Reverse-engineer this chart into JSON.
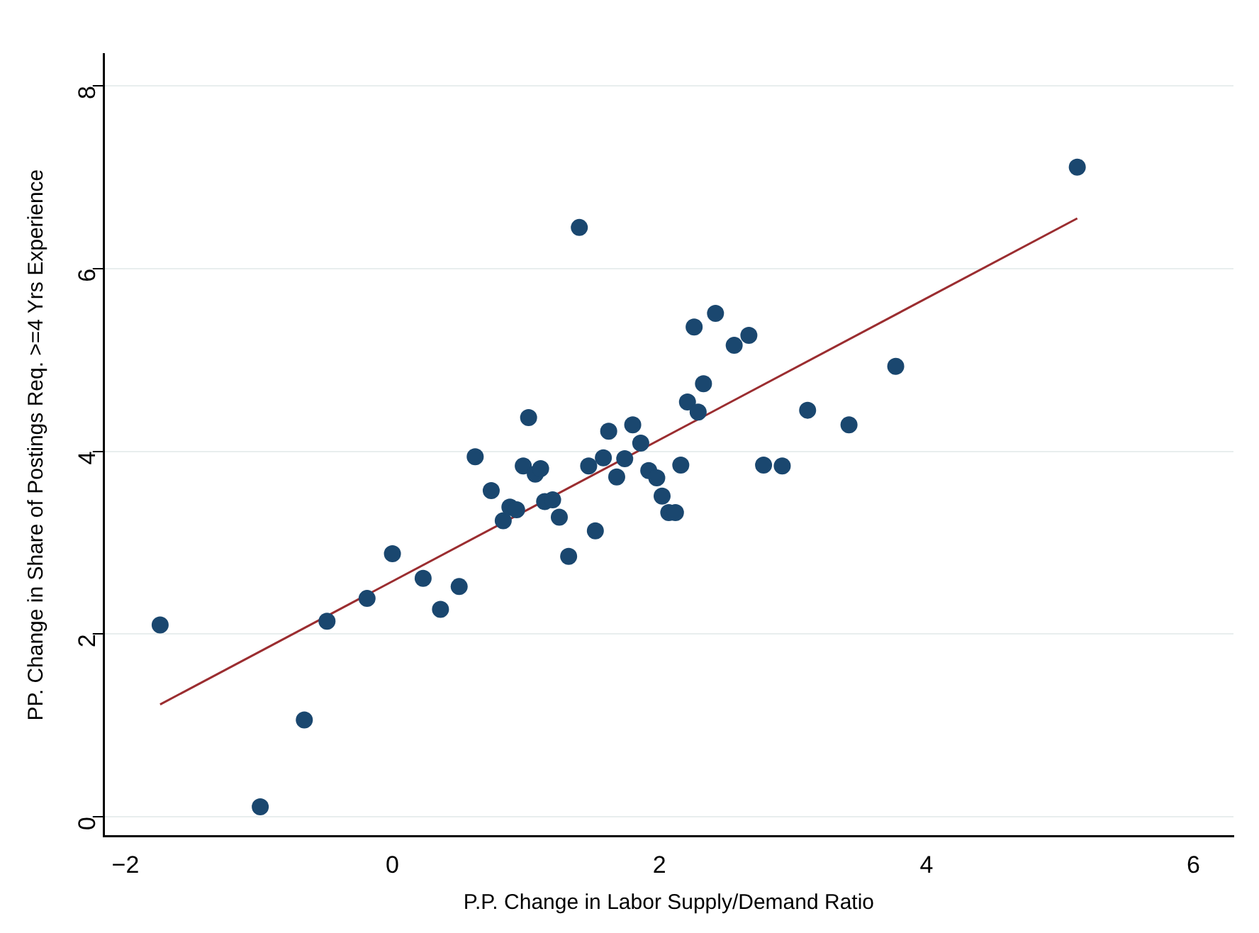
{
  "chart_data": {
    "type": "scatter",
    "xlabel": "P.P. Change in Labor Supply/Demand Ratio",
    "ylabel": "PP. Change in Share of Postings Req. >=4 Yrs Experience",
    "xlim": [
      -2.16,
      6.3
    ],
    "ylim": [
      -0.21,
      8.35
    ],
    "xticks": [
      -2,
      0,
      2,
      4,
      6
    ],
    "yticks": [
      0,
      2,
      4,
      6,
      8
    ],
    "grid": "y",
    "legend": false,
    "marker": "circle",
    "series": [
      {
        "color": "#1a476f",
        "x": [
          -1.74,
          -0.99,
          -0.66,
          -0.49,
          -0.19,
          0.0,
          0.23,
          0.36,
          0.5,
          0.62,
          0.74,
          0.83,
          0.88,
          0.93,
          0.98,
          1.02,
          1.07,
          1.11,
          1.14,
          1.2,
          1.25,
          1.32,
          1.4,
          1.47,
          1.52,
          1.58,
          1.62,
          1.68,
          1.74,
          1.8,
          1.86,
          1.92,
          1.98,
          2.02,
          2.07,
          2.12,
          2.16,
          2.21,
          2.26,
          2.29,
          2.33,
          2.42,
          2.56,
          2.67,
          2.78,
          2.92,
          3.11,
          3.42,
          3.77,
          5.13
        ],
        "values": [
          2.1,
          0.11,
          1.06,
          2.14,
          2.39,
          2.88,
          2.61,
          2.27,
          2.52,
          3.94,
          3.57,
          3.24,
          3.39,
          3.36,
          3.84,
          4.37,
          3.75,
          3.81,
          3.45,
          3.47,
          3.28,
          2.85,
          6.45,
          3.84,
          3.13,
          3.93,
          4.22,
          3.72,
          3.92,
          4.29,
          4.09,
          3.79,
          3.71,
          3.51,
          3.33,
          3.33,
          3.85,
          4.54,
          5.36,
          4.43,
          4.74,
          5.51,
          5.16,
          5.27,
          3.85,
          3.84,
          4.45,
          4.29,
          4.93,
          7.11
        ]
      },
      {
        "type": "line",
        "color": "#9b2d30",
        "marker": "none",
        "x": [
          -1.74,
          5.13
        ],
        "values": [
          1.23,
          6.55
        ]
      }
    ]
  }
}
